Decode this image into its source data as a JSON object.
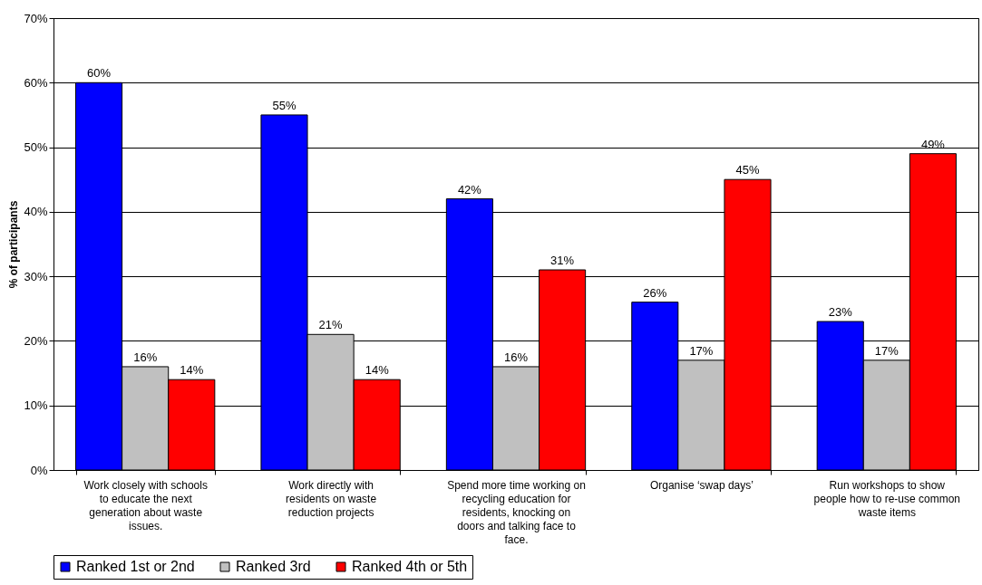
{
  "chart_data": {
    "type": "bar",
    "ylabel": "% of participants",
    "categories": [
      "Work closely with schools to educate the next generation about waste issues.",
      "Work directly with residents on waste reduction projects",
      "Spend more time working on recycling education for residents, knocking on doors and talking face to face.",
      "Organise ‘swap days’",
      "Run workshops to show people how to re-use common waste items"
    ],
    "series": [
      {
        "name": "Ranked 1st or 2nd",
        "color": "#0000ff",
        "values": [
          60,
          55,
          42,
          26,
          23
        ],
        "value_labels": [
          "60%",
          "55%",
          "42%",
          "26%",
          "23%"
        ]
      },
      {
        "name": "Ranked 3rd",
        "color": "#c0c0c0",
        "values": [
          16,
          21,
          16,
          17,
          17
        ],
        "value_labels": [
          "16%",
          "21%",
          "16%",
          "17%",
          "17%"
        ]
      },
      {
        "name": "Ranked 4th or 5th",
        "color": "#ff0000",
        "values": [
          14,
          14,
          31,
          45,
          49
        ],
        "value_labels": [
          "14%",
          "14%",
          "31%",
          "45%",
          "49%"
        ]
      }
    ],
    "ylim": [
      0,
      70
    ],
    "yticks": [
      {
        "value": 0,
        "label": "0%"
      },
      {
        "value": 10,
        "label": "10%"
      },
      {
        "value": 20,
        "label": "20%"
      },
      {
        "value": 30,
        "label": "30%"
      },
      {
        "value": 40,
        "label": "40%"
      },
      {
        "value": 50,
        "label": "50%"
      },
      {
        "value": 60,
        "label": "60%"
      },
      {
        "value": 70,
        "label": "70%"
      }
    ],
    "grid": "y",
    "legend": "bottom"
  }
}
